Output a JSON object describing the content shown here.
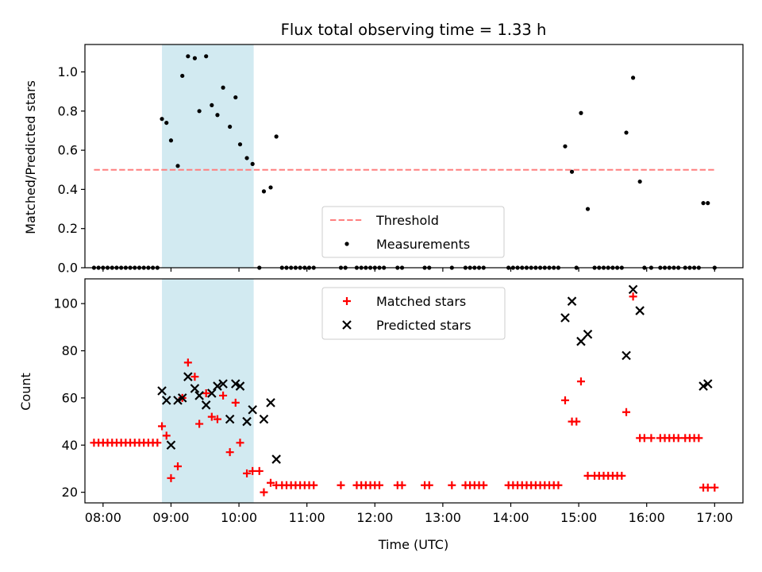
{
  "chart_data": [
    {
      "type": "scatter",
      "title": "Flux total observing time = 1.33 h",
      "xlabel": "",
      "ylabel": "Matched/Predicted stars",
      "xlim": [
        "07:44",
        "17:25"
      ],
      "ylim": [
        0,
        1.14
      ],
      "xticks": [
        "08:00",
        "09:00",
        "10:00",
        "11:00",
        "12:00",
        "13:00",
        "14:00",
        "15:00",
        "16:00",
        "17:00"
      ],
      "yticks": [
        "0.0",
        "0.2",
        "0.4",
        "0.6",
        "0.8",
        "1.0"
      ],
      "highlight": {
        "from": "08:52",
        "to": "10:13",
        "color": "#add8e6"
      },
      "threshold": {
        "name": "Threshold",
        "value": 0.5,
        "from": "07:52",
        "to": "17:00",
        "color": "#ff7f7f",
        "style": "dashed"
      },
      "series": [
        {
          "name": "Measurements",
          "color": "#000000",
          "marker": "dot",
          "points": [
            [
              "07:52",
              0
            ],
            [
              "07:56",
              0
            ],
            [
              "08:00",
              0
            ],
            [
              "08:04",
              0
            ],
            [
              "08:08",
              0
            ],
            [
              "08:12",
              0
            ],
            [
              "08:16",
              0
            ],
            [
              "08:20",
              0
            ],
            [
              "08:24",
              0
            ],
            [
              "08:28",
              0
            ],
            [
              "08:32",
              0
            ],
            [
              "08:36",
              0
            ],
            [
              "08:40",
              0
            ],
            [
              "08:44",
              0
            ],
            [
              "08:48",
              0
            ],
            [
              "08:52",
              0.76
            ],
            [
              "08:56",
              0.74
            ],
            [
              "09:00",
              0.65
            ],
            [
              "09:06",
              0.52
            ],
            [
              "09:10",
              0.98
            ],
            [
              "09:15",
              1.08
            ],
            [
              "09:21",
              1.07
            ],
            [
              "09:25",
              0.8
            ],
            [
              "09:31",
              1.08
            ],
            [
              "09:36",
              0.83
            ],
            [
              "09:41",
              0.78
            ],
            [
              "09:46",
              0.92
            ],
            [
              "09:52",
              0.72
            ],
            [
              "09:57",
              0.87
            ],
            [
              "10:01",
              0.63
            ],
            [
              "10:07",
              0.56
            ],
            [
              "10:12",
              0.53
            ],
            [
              "10:18",
              0
            ],
            [
              "10:22",
              0.39
            ],
            [
              "10:28",
              0.41
            ],
            [
              "10:33",
              0.67
            ],
            [
              "10:38",
              0
            ],
            [
              "10:42",
              0
            ],
            [
              "10:46",
              0
            ],
            [
              "10:50",
              0
            ],
            [
              "10:54",
              0
            ],
            [
              "10:58",
              0
            ],
            [
              "11:02",
              0
            ],
            [
              "11:06",
              0
            ],
            [
              "11:30",
              0
            ],
            [
              "11:34",
              0
            ],
            [
              "11:44",
              0
            ],
            [
              "11:48",
              0
            ],
            [
              "11:52",
              0
            ],
            [
              "11:56",
              0
            ],
            [
              "12:00",
              0
            ],
            [
              "12:04",
              0
            ],
            [
              "12:08",
              0
            ],
            [
              "12:20",
              0
            ],
            [
              "12:24",
              0
            ],
            [
              "12:44",
              0
            ],
            [
              "12:48",
              0
            ],
            [
              "13:08",
              0
            ],
            [
              "13:20",
              0
            ],
            [
              "13:24",
              0
            ],
            [
              "13:28",
              0
            ],
            [
              "13:32",
              0
            ],
            [
              "13:36",
              0
            ],
            [
              "13:58",
              0
            ],
            [
              "14:02",
              0
            ],
            [
              "14:06",
              0
            ],
            [
              "14:10",
              0
            ],
            [
              "14:14",
              0
            ],
            [
              "14:18",
              0
            ],
            [
              "14:22",
              0
            ],
            [
              "14:26",
              0
            ],
            [
              "14:30",
              0
            ],
            [
              "14:34",
              0
            ],
            [
              "14:38",
              0
            ],
            [
              "14:42",
              0
            ],
            [
              "14:48",
              0.62
            ],
            [
              "14:54",
              0.49
            ],
            [
              "14:58",
              0
            ],
            [
              "15:02",
              0.79
            ],
            [
              "15:08",
              0.3
            ],
            [
              "15:14",
              0
            ],
            [
              "15:18",
              0
            ],
            [
              "15:22",
              0
            ],
            [
              "15:26",
              0
            ],
            [
              "15:30",
              0
            ],
            [
              "15:34",
              0
            ],
            [
              "15:38",
              0
            ],
            [
              "15:42",
              0.69
            ],
            [
              "15:48",
              0.97
            ],
            [
              "15:54",
              0.44
            ],
            [
              "15:58",
              0
            ],
            [
              "16:04",
              0
            ],
            [
              "16:12",
              0
            ],
            [
              "16:16",
              0
            ],
            [
              "16:20",
              0
            ],
            [
              "16:24",
              0
            ],
            [
              "16:28",
              0
            ],
            [
              "16:34",
              0
            ],
            [
              "16:38",
              0
            ],
            [
              "16:42",
              0
            ],
            [
              "16:46",
              0
            ],
            [
              "16:50",
              0.33
            ],
            [
              "16:54",
              0.33
            ],
            [
              "17:00",
              0
            ]
          ]
        }
      ],
      "legend": {
        "placement": "lower center",
        "entries": [
          "Threshold",
          "Measurements"
        ]
      }
    },
    {
      "type": "scatter",
      "title": "",
      "xlabel": "Time (UTC)",
      "ylabel": "Count",
      "xlim": [
        "07:44",
        "17:25"
      ],
      "ylim": [
        15.5,
        110.5
      ],
      "xticks": [
        "08:00",
        "09:00",
        "10:00",
        "11:00",
        "12:00",
        "13:00",
        "14:00",
        "15:00",
        "16:00",
        "17:00"
      ],
      "yticks": [
        "20",
        "40",
        "60",
        "80",
        "100"
      ],
      "highlight": {
        "from": "08:52",
        "to": "10:13",
        "color": "#add8e6"
      },
      "series": [
        {
          "name": "Matched stars",
          "color": "#ff0000",
          "marker": "plus",
          "points": [
            [
              "07:52",
              41
            ],
            [
              "07:56",
              41
            ],
            [
              "08:00",
              41
            ],
            [
              "08:04",
              41
            ],
            [
              "08:08",
              41
            ],
            [
              "08:12",
              41
            ],
            [
              "08:16",
              41
            ],
            [
              "08:20",
              41
            ],
            [
              "08:24",
              41
            ],
            [
              "08:28",
              41
            ],
            [
              "08:32",
              41
            ],
            [
              "08:36",
              41
            ],
            [
              "08:40",
              41
            ],
            [
              "08:44",
              41
            ],
            [
              "08:48",
              41
            ],
            [
              "08:52",
              48
            ],
            [
              "08:56",
              44
            ],
            [
              "09:00",
              26
            ],
            [
              "09:06",
              31
            ],
            [
              "09:10",
              60
            ],
            [
              "09:15",
              75
            ],
            [
              "09:21",
              69
            ],
            [
              "09:25",
              49
            ],
            [
              "09:31",
              62
            ],
            [
              "09:36",
              52
            ],
            [
              "09:41",
              51
            ],
            [
              "09:46",
              61
            ],
            [
              "09:52",
              37
            ],
            [
              "09:57",
              58
            ],
            [
              "10:01",
              41
            ],
            [
              "10:07",
              28
            ],
            [
              "10:12",
              29
            ],
            [
              "10:18",
              29
            ],
            [
              "10:22",
              20
            ],
            [
              "10:28",
              24
            ],
            [
              "10:33",
              23
            ],
            [
              "10:38",
              23
            ],
            [
              "10:42",
              23
            ],
            [
              "10:46",
              23
            ],
            [
              "10:50",
              23
            ],
            [
              "10:54",
              23
            ],
            [
              "10:58",
              23
            ],
            [
              "11:02",
              23
            ],
            [
              "11:06",
              23
            ],
            [
              "11:30",
              23
            ],
            [
              "11:44",
              23
            ],
            [
              "11:48",
              23
            ],
            [
              "11:52",
              23
            ],
            [
              "11:56",
              23
            ],
            [
              "12:00",
              23
            ],
            [
              "12:04",
              23
            ],
            [
              "12:20",
              23
            ],
            [
              "12:24",
              23
            ],
            [
              "12:44",
              23
            ],
            [
              "12:48",
              23
            ],
            [
              "13:08",
              23
            ],
            [
              "13:20",
              23
            ],
            [
              "13:24",
              23
            ],
            [
              "13:28",
              23
            ],
            [
              "13:32",
              23
            ],
            [
              "13:36",
              23
            ],
            [
              "13:58",
              23
            ],
            [
              "14:02",
              23
            ],
            [
              "14:06",
              23
            ],
            [
              "14:10",
              23
            ],
            [
              "14:14",
              23
            ],
            [
              "14:18",
              23
            ],
            [
              "14:22",
              23
            ],
            [
              "14:26",
              23
            ],
            [
              "14:30",
              23
            ],
            [
              "14:34",
              23
            ],
            [
              "14:38",
              23
            ],
            [
              "14:42",
              23
            ],
            [
              "14:48",
              59
            ],
            [
              "14:54",
              50
            ],
            [
              "14:58",
              50
            ],
            [
              "15:02",
              67
            ],
            [
              "15:08",
              27
            ],
            [
              "15:14",
              27
            ],
            [
              "15:18",
              27
            ],
            [
              "15:22",
              27
            ],
            [
              "15:26",
              27
            ],
            [
              "15:30",
              27
            ],
            [
              "15:34",
              27
            ],
            [
              "15:38",
              27
            ],
            [
              "15:42",
              54
            ],
            [
              "15:48",
              103
            ],
            [
              "15:54",
              43
            ],
            [
              "15:58",
              43
            ],
            [
              "16:04",
              43
            ],
            [
              "16:12",
              43
            ],
            [
              "16:16",
              43
            ],
            [
              "16:20",
              43
            ],
            [
              "16:24",
              43
            ],
            [
              "16:28",
              43
            ],
            [
              "16:34",
              43
            ],
            [
              "16:38",
              43
            ],
            [
              "16:42",
              43
            ],
            [
              "16:46",
              43
            ],
            [
              "16:50",
              22
            ],
            [
              "16:54",
              22
            ],
            [
              "17:00",
              22
            ]
          ]
        },
        {
          "name": "Predicted stars",
          "color": "#000000",
          "marker": "x",
          "points": [
            [
              "08:52",
              63
            ],
            [
              "08:56",
              59
            ],
            [
              "09:00",
              40
            ],
            [
              "09:06",
              59
            ],
            [
              "09:10",
              60
            ],
            [
              "09:15",
              69
            ],
            [
              "09:21",
              64
            ],
            [
              "09:25",
              61
            ],
            [
              "09:31",
              57
            ],
            [
              "09:36",
              62
            ],
            [
              "09:41",
              65
            ],
            [
              "09:46",
              66
            ],
            [
              "09:52",
              51
            ],
            [
              "09:57",
              66
            ],
            [
              "10:01",
              65
            ],
            [
              "10:07",
              50
            ],
            [
              "10:12",
              55
            ],
            [
              "10:22",
              51
            ],
            [
              "10:28",
              58
            ],
            [
              "10:33",
              34
            ],
            [
              "14:48",
              94
            ],
            [
              "14:54",
              101
            ],
            [
              "15:02",
              84
            ],
            [
              "15:08",
              87
            ],
            [
              "15:42",
              78
            ],
            [
              "15:48",
              106
            ],
            [
              "15:54",
              97
            ],
            [
              "16:50",
              65
            ],
            [
              "16:54",
              66
            ]
          ]
        }
      ],
      "legend": {
        "placement": "upper center",
        "entries": [
          "Matched stars",
          "Predicted stars"
        ]
      }
    }
  ]
}
